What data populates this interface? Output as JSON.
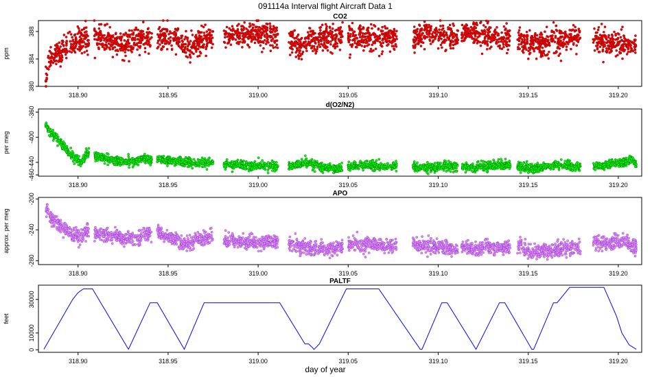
{
  "title": "091114a   Interval flight Aircraft Data 1",
  "xlabel": "day of year",
  "x_ticks": [
    318.9,
    318.95,
    319.0,
    319.05,
    319.1,
    319.15,
    319.2
  ],
  "x_tick_labels": [
    "318.90",
    "318.95",
    "319.00",
    "319.05",
    "319.10",
    "319.15",
    "319.20"
  ],
  "xlim": [
    318.878,
    319.213
  ],
  "flight_segments": [
    [
      318.882,
      318.906
    ],
    [
      318.909,
      318.941
    ],
    [
      318.944,
      318.975
    ],
    [
      318.981,
      319.011
    ],
    [
      319.017,
      319.047
    ],
    [
      319.05,
      319.077
    ],
    [
      319.086,
      319.111
    ],
    [
      319.113,
      319.14
    ],
    [
      319.144,
      319.179
    ],
    [
      319.186,
      319.21
    ]
  ],
  "chart_data": [
    {
      "type": "scatter",
      "title": "CO2",
      "ylabel": "ppm",
      "ylim": [
        380,
        389.6
      ],
      "y_ticks": [
        380,
        384,
        388
      ],
      "y_tick_labels": [
        "380",
        "384",
        "388"
      ],
      "fill_color": "#ff0000",
      "edge_color": "#7a0000",
      "noise": 0.9,
      "series": [
        {
          "x": [
            318.882,
            318.884,
            318.886,
            318.89,
            318.895,
            318.9,
            318.904,
            318.906
          ],
          "y": [
            380.8,
            383.8,
            384.2,
            385.0,
            386.2,
            386.8,
            387.0,
            386.5
          ]
        },
        {
          "x": [
            318.909,
            318.915,
            318.925,
            318.935,
            318.941
          ],
          "y": [
            387.3,
            386.8,
            386.0,
            386.8,
            387.2
          ]
        },
        {
          "x": [
            318.944,
            318.952,
            318.96,
            318.968,
            318.975
          ],
          "y": [
            387.2,
            386.7,
            385.8,
            386.7,
            387.0
          ]
        },
        {
          "x": [
            318.981,
            318.99,
            319.0,
            319.011
          ],
          "y": [
            387.3,
            387.4,
            387.6,
            387.5
          ]
        },
        {
          "x": [
            319.017,
            319.024,
            319.027,
            319.035,
            319.047
          ],
          "y": [
            386.8,
            385.6,
            386.4,
            386.9,
            387.4
          ]
        },
        {
          "x": [
            319.05,
            319.06,
            319.07,
            319.077
          ],
          "y": [
            387.2,
            387.0,
            387.1,
            386.8
          ]
        },
        {
          "x": [
            319.086,
            319.095,
            319.101,
            319.11,
            319.111
          ],
          "y": [
            387.0,
            387.9,
            387.6,
            386.6,
            386.3
          ]
        },
        {
          "x": [
            319.113,
            319.12,
            319.127,
            319.135,
            319.14
          ],
          "y": [
            387.7,
            387.7,
            387.3,
            386.8,
            387.0
          ]
        },
        {
          "x": [
            319.144,
            319.152,
            319.16,
            319.17,
            319.179
          ],
          "y": [
            387.2,
            386.1,
            386.3,
            386.8,
            387.2
          ]
        },
        {
          "x": [
            319.186,
            319.195,
            319.203,
            319.21
          ],
          "y": [
            386.9,
            386.4,
            386.1,
            386.4
          ]
        }
      ]
    },
    {
      "type": "scatter",
      "title": "d(O2/N2)",
      "ylabel": "per meg",
      "ylim": [
        -462,
        -355
      ],
      "y_ticks": [
        -460,
        -440,
        -400,
        -360
      ],
      "y_tick_labels": [
        "-460",
        "-440",
        "-400",
        "-360"
      ],
      "fill_color": "#00ff00",
      "edge_color": "#006600",
      "noise": 3.5,
      "series": [
        {
          "x": [
            318.882,
            318.884,
            318.888,
            318.893,
            318.898,
            318.902,
            318.904,
            318.906
          ],
          "y": [
            -378,
            -392,
            -402,
            -418,
            -432,
            -440,
            -428,
            -425
          ]
        },
        {
          "x": [
            318.909,
            318.915,
            318.922,
            318.93,
            318.937,
            318.941
          ],
          "y": [
            -430,
            -433,
            -438,
            -440,
            -433,
            -438
          ]
        },
        {
          "x": [
            318.944,
            318.95,
            318.958,
            318.965,
            318.975
          ],
          "y": [
            -435,
            -437,
            -440,
            -441,
            -440
          ]
        },
        {
          "x": [
            318.981,
            318.99,
            319.0,
            319.011
          ],
          "y": [
            -443,
            -445,
            -446,
            -446
          ]
        },
        {
          "x": [
            319.017,
            319.025,
            319.03,
            319.04,
            319.047
          ],
          "y": [
            -446,
            -440,
            -444,
            -450,
            -448
          ]
        },
        {
          "x": [
            319.05,
            319.06,
            319.07,
            319.077
          ],
          "y": [
            -446,
            -445,
            -446,
            -446
          ]
        },
        {
          "x": [
            319.086,
            319.095,
            319.105,
            319.111
          ],
          "y": [
            -447,
            -449,
            -446,
            -447
          ]
        },
        {
          "x": [
            319.113,
            319.12,
            319.13,
            319.14
          ],
          "y": [
            -447,
            -448,
            -445,
            -444
          ]
        },
        {
          "x": [
            319.144,
            319.152,
            319.16,
            319.17,
            319.179
          ],
          "y": [
            -447,
            -449,
            -446,
            -444,
            -447
          ]
        },
        {
          "x": [
            319.186,
            319.195,
            319.203,
            319.208,
            319.21
          ],
          "y": [
            -447,
            -444,
            -440,
            -436,
            -443
          ]
        }
      ]
    },
    {
      "type": "scatter",
      "title": "APO",
      "ylabel": "approx. per meg",
      "ylim": [
        -285,
        -198
      ],
      "y_ticks": [
        -280,
        -240,
        -200
      ],
      "y_tick_labels": [
        "-280",
        "-240",
        "-200"
      ],
      "fill_color": "#ee88ee",
      "edge_color": "#7a3ad8",
      "noise": 4.5,
      "series": [
        {
          "x": [
            318.882,
            318.885,
            318.89,
            318.896,
            318.901,
            318.904,
            318.906
          ],
          "y": [
            -212,
            -225,
            -235,
            -245,
            -250,
            -242,
            -240
          ]
        },
        {
          "x": [
            318.909,
            318.915,
            318.922,
            318.93,
            318.937,
            318.941
          ],
          "y": [
            -243,
            -246,
            -250,
            -252,
            -247,
            -248
          ]
        },
        {
          "x": [
            318.944,
            318.95,
            318.958,
            318.965,
            318.975
          ],
          "y": [
            -244,
            -248,
            -258,
            -254,
            -249
          ]
        },
        {
          "x": [
            318.981,
            318.99,
            319.0,
            319.011
          ],
          "y": [
            -254,
            -256,
            -255,
            -256
          ]
        },
        {
          "x": [
            319.017,
            319.025,
            319.032,
            319.04,
            319.047
          ],
          "y": [
            -258,
            -262,
            -265,
            -265,
            -262
          ]
        },
        {
          "x": [
            319.05,
            319.06,
            319.07,
            319.077
          ],
          "y": [
            -258,
            -260,
            -261,
            -260
          ]
        },
        {
          "x": [
            319.086,
            319.095,
            319.105,
            319.111
          ],
          "y": [
            -258,
            -262,
            -262,
            -266
          ]
        },
        {
          "x": [
            319.113,
            319.12,
            319.13,
            319.14
          ],
          "y": [
            -263,
            -265,
            -262,
            -262
          ]
        },
        {
          "x": [
            319.144,
            319.152,
            319.16,
            319.17,
            319.179
          ],
          "y": [
            -260,
            -268,
            -268,
            -264,
            -262
          ]
        },
        {
          "x": [
            319.186,
            319.195,
            319.203,
            319.21
          ],
          "y": [
            -258,
            -257,
            -255,
            -262
          ]
        }
      ]
    },
    {
      "type": "line",
      "title": "PALTF",
      "ylabel": "feet",
      "ylim": [
        -1500,
        38500
      ],
      "y_ticks": [
        0,
        10000,
        30000
      ],
      "y_tick_labels": [
        "0",
        "10000",
        "30000"
      ],
      "line_color": "#0000ff",
      "x": [
        318.881,
        318.897,
        318.9,
        318.903,
        318.908,
        318.928,
        318.94,
        318.944,
        318.959,
        318.97,
        319.012,
        319.026,
        319.028,
        319.03,
        319.031,
        319.034,
        319.049,
        319.067,
        319.09,
        319.091,
        319.102,
        319.105,
        319.121,
        319.134,
        319.137,
        319.152,
        319.153,
        319.164,
        319.166,
        319.173,
        319.192,
        319.199,
        319.202,
        319.206,
        319.21
      ],
      "y": [
        300,
        30000,
        34000,
        36300,
        36300,
        300,
        28000,
        28000,
        300,
        28000,
        28000,
        3500,
        3500,
        1500,
        200,
        3500,
        36300,
        36300,
        300,
        300,
        28000,
        28000,
        300,
        28000,
        28000,
        300,
        300,
        28000,
        28000,
        37200,
        37200,
        20000,
        10000,
        3000,
        300
      ]
    }
  ]
}
